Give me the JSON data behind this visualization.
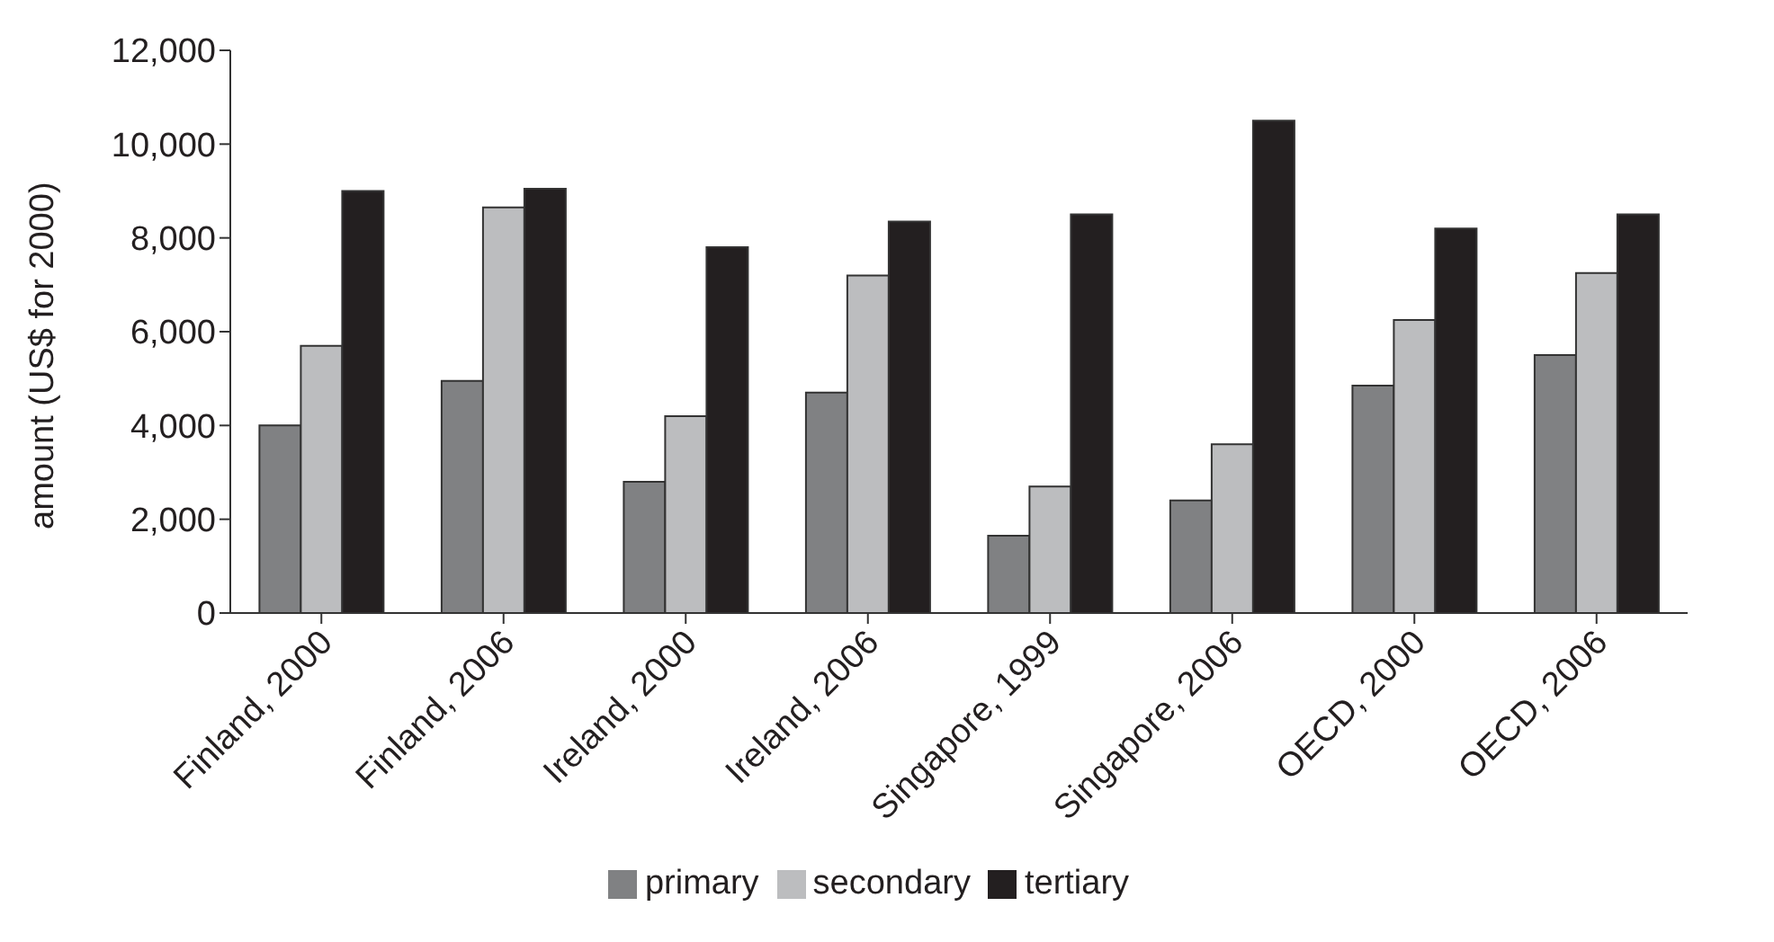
{
  "chart_data": {
    "type": "bar",
    "ylabel": "amount (US$ for 2000)",
    "categories": [
      "Finland, 2000",
      "Finland, 2006",
      "Ireland, 2000",
      "Ireland, 2006",
      "Singapore, 1999",
      "Singapore, 2006",
      "OECD, 2000",
      "OECD, 2006"
    ],
    "series": [
      {
        "name": "primary",
        "color": "#808183",
        "values": [
          4000,
          4950,
          2800,
          4700,
          1650,
          2400,
          4850,
          5500
        ]
      },
      {
        "name": "secondary",
        "color": "#bcbdbf",
        "values": [
          5700,
          8650,
          4200,
          7200,
          2700,
          3600,
          6250,
          7250
        ]
      },
      {
        "name": "tertiary",
        "color": "#231f20",
        "values": [
          9000,
          9050,
          7800,
          8350,
          8500,
          10500,
          8200,
          8500
        ]
      }
    ],
    "ylim": [
      0,
      12000
    ],
    "yticks": [
      {
        "value": 0,
        "label": "0"
      },
      {
        "value": 2000,
        "label": "2,000"
      },
      {
        "value": 4000,
        "label": "4,000"
      },
      {
        "value": 6000,
        "label": "6,000"
      },
      {
        "value": 8000,
        "label": "8,000"
      },
      {
        "value": 10000,
        "label": "10,000"
      },
      {
        "value": 12000,
        "label": "12,000"
      }
    ],
    "grid": false,
    "legend": "bottom"
  }
}
